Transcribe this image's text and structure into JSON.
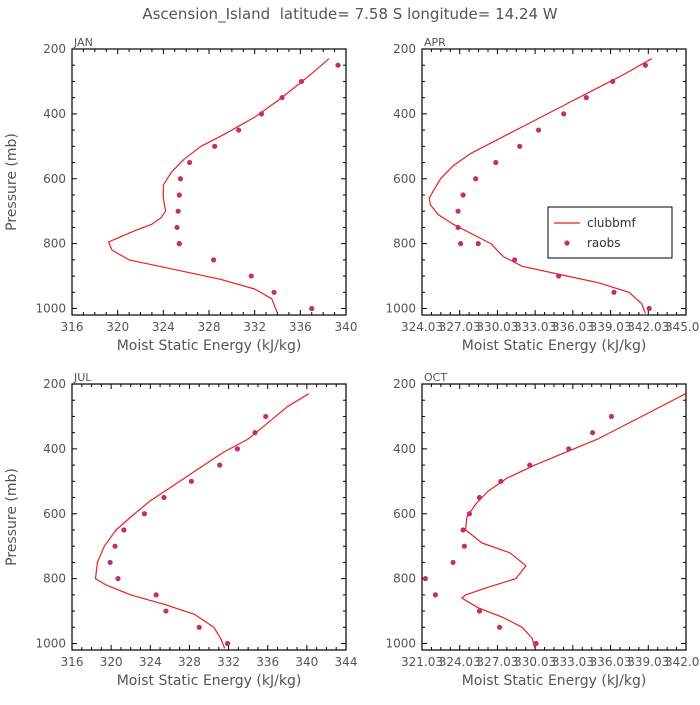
{
  "page": {
    "title": "Ascension_Island  latitude= 7.58 S longitude= 14.24 W"
  },
  "colors": {
    "model_line": "#e8211f",
    "obs_point": "#c0306a",
    "axis": "#000000",
    "text": "#555555"
  },
  "legend": {
    "model": "clubbmf",
    "obs": "raobs"
  },
  "chart_data": [
    {
      "type": "line",
      "panel": "JAN",
      "xlabel": "Moist Static Energy (kJ/kg)",
      "ylabel": "Pressure (mb)",
      "xlim": [
        316,
        340
      ],
      "ylim": [
        1020,
        200
      ],
      "xticks": [
        316,
        320,
        324,
        328,
        332,
        336,
        340
      ],
      "xtick_labels": [
        "316",
        "320",
        "324",
        "328",
        "332",
        "336",
        "340"
      ],
      "yticks": [
        200,
        400,
        600,
        800,
        1000
      ],
      "ytick_labels": [
        "200",
        "400",
        "600",
        "800",
        "1000"
      ],
      "series": [
        {
          "name": "clubbmf",
          "kind": "line",
          "x": [
            338.5,
            337.2,
            335.8,
            334.0,
            332.0,
            329.5,
            327.3,
            325.8,
            324.7,
            324.0,
            324.0,
            324.2,
            323.8,
            323.0,
            321.5,
            320.2,
            319.2,
            319.5,
            321.0,
            325.0,
            329.0,
            332.0,
            333.5,
            334.0
          ],
          "y": [
            230,
            270,
            310,
            360,
            410,
            460,
            500,
            540,
            580,
            620,
            660,
            700,
            720,
            740,
            760,
            780,
            795,
            820,
            850,
            880,
            910,
            940,
            970,
            1015
          ]
        },
        {
          "name": "raobs",
          "kind": "points",
          "x": [
            339.3,
            336.1,
            334.4,
            332.6,
            330.6,
            328.5,
            326.3,
            325.5,
            325.4,
            325.3,
            325.2,
            325.4,
            325.4,
            328.4,
            331.7,
            333.7,
            337.0
          ],
          "y": [
            250,
            300,
            350,
            400,
            450,
            500,
            550,
            600,
            650,
            700,
            750,
            800,
            800,
            850,
            900,
            950,
            1000
          ]
        }
      ]
    },
    {
      "type": "line",
      "panel": "APR",
      "xlabel": "Moist Static Energy (kJ/kg)",
      "ylabel": "",
      "xlim": [
        324.03,
        345.03
      ],
      "ylim": [
        1020,
        200
      ],
      "xticks": [
        324.03,
        327.03,
        330.03,
        333.03,
        336.03,
        339.03,
        342.03,
        345.03
      ],
      "xtick_labels": [
        "324.03",
        "327.03",
        "330.03",
        "333.03",
        "336.03",
        "339.03",
        "342.03",
        "345.03"
      ],
      "yticks": [
        200,
        400,
        600,
        800,
        1000
      ],
      "ytick_labels": [
        "200",
        "400",
        "600",
        "800",
        "1000"
      ],
      "series": [
        {
          "name": "clubbmf",
          "kind": "line",
          "x": [
            342.3,
            340.0,
            337.5,
            335.0,
            332.5,
            330.0,
            328.0,
            326.5,
            325.5,
            324.9,
            324.6,
            324.7,
            325.3,
            326.5,
            328.0,
            329.5,
            330.5,
            332.0,
            335.0,
            338.0,
            340.5,
            341.5,
            341.8
          ],
          "y": [
            230,
            280,
            330,
            380,
            430,
            480,
            520,
            560,
            600,
            640,
            660,
            680,
            710,
            740,
            770,
            800,
            840,
            870,
            895,
            920,
            950,
            985,
            1015
          ]
        },
        {
          "name": "raobs",
          "kind": "points",
          "x": [
            341.8,
            339.2,
            337.1,
            335.3,
            333.3,
            331.8,
            329.9,
            328.3,
            327.3,
            326.9,
            326.9,
            327.1,
            328.5,
            331.4,
            334.9,
            339.3,
            342.1
          ],
          "y": [
            250,
            300,
            350,
            400,
            450,
            500,
            550,
            600,
            650,
            700,
            750,
            800,
            800,
            850,
            900,
            950,
            1000
          ]
        }
      ]
    },
    {
      "type": "line",
      "panel": "JUL",
      "xlabel": "Moist Static Energy (kJ/kg)",
      "ylabel": "Pressure (mb)",
      "xlim": [
        316,
        344
      ],
      "ylim": [
        1020,
        200
      ],
      "xticks": [
        316,
        320,
        324,
        328,
        332,
        336,
        340,
        344
      ],
      "xtick_labels": [
        "316",
        "320",
        "324",
        "328",
        "332",
        "336",
        "340",
        "344"
      ],
      "yticks": [
        200,
        400,
        600,
        800,
        1000
      ],
      "ytick_labels": [
        "200",
        "400",
        "600",
        "800",
        "1000"
      ],
      "series": [
        {
          "name": "clubbmf",
          "kind": "line",
          "x": [
            340.2,
            338.0,
            336.0,
            334.0,
            331.5,
            329.0,
            326.5,
            324.0,
            322.0,
            320.5,
            319.3,
            318.6,
            318.4,
            319.5,
            322.0,
            325.5,
            328.5,
            330.5,
            331.2,
            331.6
          ],
          "y": [
            230,
            270,
            320,
            370,
            410,
            460,
            510,
            560,
            610,
            650,
            700,
            750,
            800,
            820,
            850,
            880,
            910,
            950,
            985,
            1015
          ]
        },
        {
          "name": "raobs",
          "kind": "points",
          "x": [
            335.8,
            334.7,
            332.9,
            331.1,
            328.2,
            325.4,
            323.4,
            321.3,
            320.4,
            319.9,
            320.7,
            324.6,
            325.6,
            329.0,
            331.9
          ],
          "y": [
            300,
            350,
            400,
            450,
            500,
            550,
            600,
            650,
            700,
            750,
            800,
            850,
            900,
            950,
            1000
          ]
        }
      ]
    },
    {
      "type": "line",
      "panel": "OCT",
      "xlabel": "Moist Static Energy (kJ/kg)",
      "ylabel": "",
      "xlim": [
        321.03,
        342.03
      ],
      "ylim": [
        1020,
        200
      ],
      "xticks": [
        321.03,
        324.03,
        327.03,
        330.03,
        333.03,
        336.03,
        339.03,
        342.03
      ],
      "xtick_labels": [
        "321.03",
        "324.03",
        "327.03",
        "330.03",
        "333.03",
        "336.03",
        "339.03",
        "342.03"
      ],
      "yticks": [
        200,
        400,
        600,
        800,
        1000
      ],
      "ytick_labels": [
        "200",
        "400",
        "600",
        "800",
        "1000"
      ],
      "series": [
        {
          "name": "clubbmf",
          "kind": "line",
          "x": [
            342.0,
            339.5,
            337.5,
            335.0,
            332.5,
            330.0,
            327.8,
            326.3,
            325.3,
            324.6,
            324.5,
            325.8,
            328.0,
            329.3,
            328.5,
            326.0,
            324.5,
            324.2,
            325.5,
            327.5,
            329.0,
            329.8,
            330.0
          ],
          "y": [
            230,
            280,
            320,
            370,
            410,
            450,
            490,
            530,
            570,
            610,
            650,
            690,
            720,
            760,
            800,
            830,
            850,
            860,
            890,
            920,
            950,
            985,
            1015
          ]
        },
        {
          "name": "raobs",
          "kind": "points",
          "x": [
            336.1,
            334.6,
            332.7,
            329.6,
            327.3,
            325.6,
            324.8,
            324.3,
            324.4,
            323.5,
            321.3,
            322.1,
            325.6,
            327.2,
            330.1
          ],
          "y": [
            300,
            350,
            400,
            450,
            500,
            550,
            600,
            650,
            700,
            750,
            800,
            850,
            900,
            950,
            1000
          ]
        }
      ]
    }
  ]
}
